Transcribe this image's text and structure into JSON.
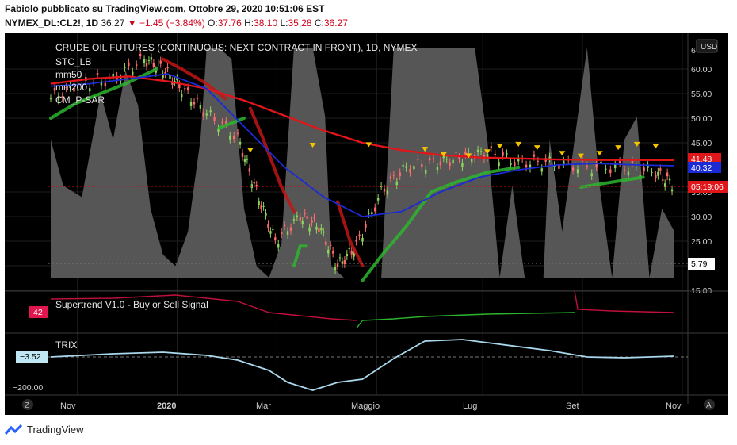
{
  "header": {
    "line1": "Fabiolo pubblicato su TradingView.com, Ottobre 29, 2020 10:51:06 EST",
    "symbol": "NYMEX_DL:CL2!, 1D",
    "last": "36.27",
    "change": "−1.45 (−3.84%)",
    "o_label": "O:",
    "o_val": "37.76",
    "h_label": "H:",
    "h_val": "38.10",
    "l_label": "L:",
    "l_val": "35.28",
    "c_label": "C:",
    "c_val": "36.27"
  },
  "main_pane": {
    "title": "CRUDE OIL FUTURES (CONTINUOUS: NEXT CONTRACT IN FRONT), 1D, NYMEX",
    "indicators": [
      "STC_LB",
      "mm50",
      "mm200",
      "CM_P-SAR"
    ],
    "currency_button": "USD",
    "price_ticks": [
      "60.00",
      "55.00",
      "50.00",
      "45.00",
      "35.00",
      "30.00",
      "25.00",
      "20.00",
      "15.00"
    ],
    "price_top_cut": "6",
    "badges": {
      "ma200": "41.48",
      "ma50": "40.32",
      "countdown": "05:19:06",
      "stc": "5.79"
    }
  },
  "supertrend_pane": {
    "title": "Supertrend V1.0 - Buy or Sell Signal",
    "badge": "42"
  },
  "trix_pane": {
    "title": "TRIX",
    "badge": "−3.52",
    "tick": "−200.00"
  },
  "time_axis": {
    "labels": [
      "Nov",
      "2020",
      "Mar",
      "Maggio",
      "Lug",
      "Set",
      "Nov"
    ],
    "left_button": "Z",
    "right_button": "A"
  },
  "footer": {
    "logo_text": "TradingView"
  },
  "colors": {
    "background": "#000000",
    "ma200": "#e0161b",
    "ma50": "#1a2bd6",
    "sar_up": "#2db52d",
    "sar_down": "#c21515",
    "stc_fill": "#6a6a6a",
    "supertrend_up": "#2db52d",
    "supertrend_down": "#c0103c",
    "trix": "#a9d8ec",
    "sar_marker": "#f5c400"
  },
  "chart_data": {
    "type": "line",
    "series": [
      {
        "name": "mm200",
        "values": [
          57.0,
          58.0,
          58.5,
          57.5,
          56.0,
          53.5,
          50.5,
          47.5,
          45.0,
          43.5,
          42.5,
          42.0,
          41.8,
          41.6,
          41.5,
          41.5,
          41.48
        ]
      },
      {
        "name": "mm50",
        "values": [
          56.5,
          57.0,
          58.0,
          59.0,
          56.0,
          48.0,
          40.0,
          34.0,
          30.0,
          31.0,
          35.0,
          38.0,
          39.5,
          40.5,
          40.8,
          40.5,
          40.32
        ]
      }
    ],
    "price": {
      "dates": [
        "Nov",
        "2020",
        "Mar",
        "Maggio",
        "Lug",
        "Set",
        "Nov"
      ],
      "approx_close": [
        56.0,
        61.0,
        50.0,
        24.0,
        20.0,
        40.0,
        42.0,
        40.0,
        36.27
      ]
    },
    "ylim": [
      15,
      65
    ]
  }
}
